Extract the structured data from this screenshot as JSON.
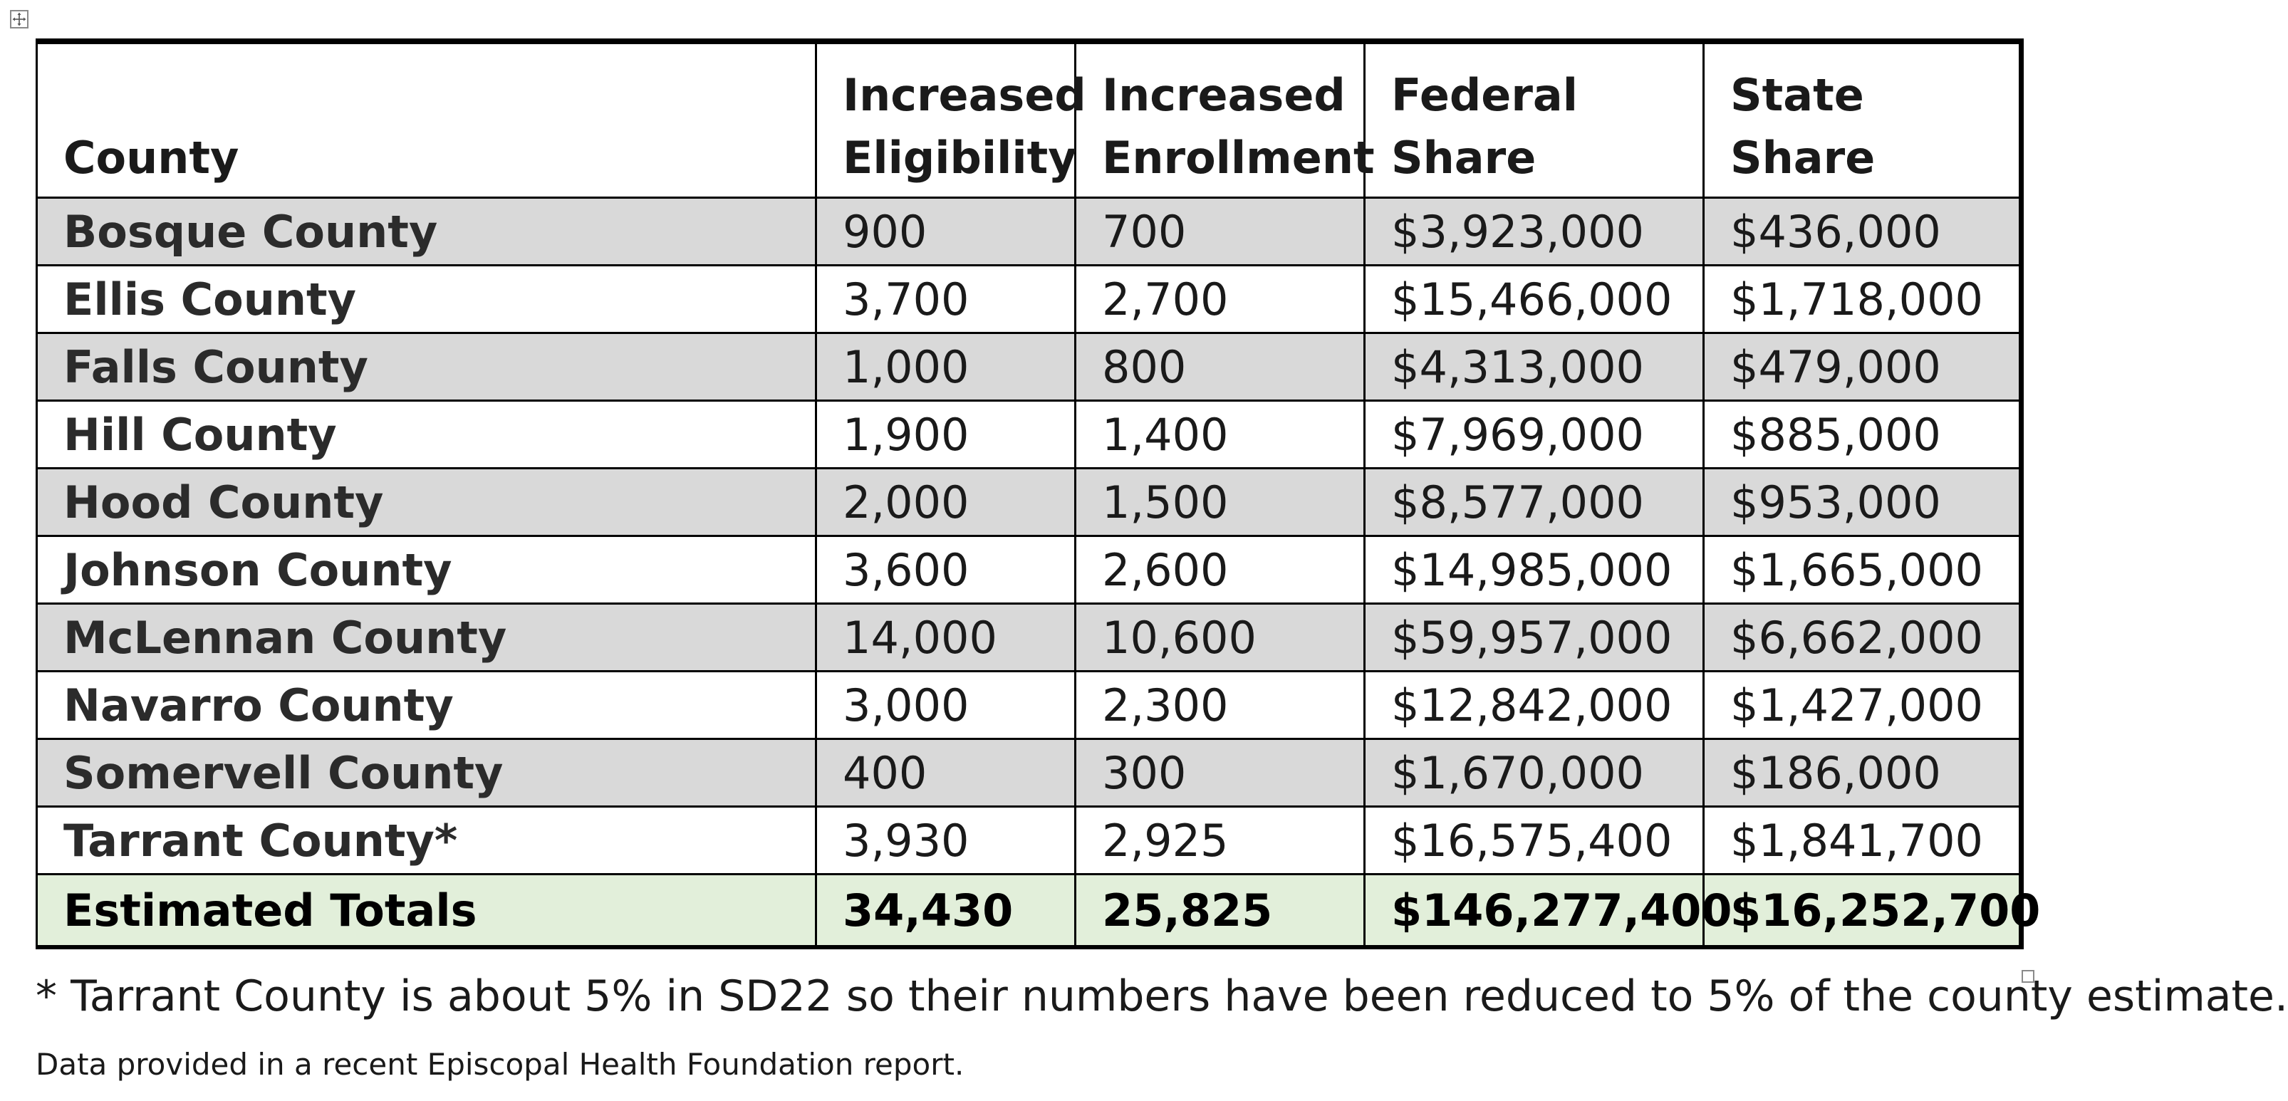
{
  "table": {
    "headers": [
      [
        "County"
      ],
      [
        "Increased",
        "Eligibility"
      ],
      [
        "Increased",
        "Enrollment"
      ],
      [
        "Federal",
        "Share"
      ],
      [
        "State Share"
      ]
    ],
    "rows": [
      {
        "county": "Bosque County",
        "eligibility": "900",
        "enrollment": "700",
        "federal": "$3,923,000",
        "state": "$436,000"
      },
      {
        "county": "Ellis County",
        "eligibility": "3,700",
        "enrollment": "2,700",
        "federal": "$15,466,000",
        "state": "$1,718,000"
      },
      {
        "county": "Falls County",
        "eligibility": "1,000",
        "enrollment": "800",
        "federal": "$4,313,000",
        "state": "$479,000"
      },
      {
        "county": "Hill County",
        "eligibility": "1,900",
        "enrollment": "1,400",
        "federal": "$7,969,000",
        "state": "$885,000"
      },
      {
        "county": "Hood County",
        "eligibility": "2,000",
        "enrollment": "1,500",
        "federal": "$8,577,000",
        "state": "$953,000"
      },
      {
        "county": "Johnson County",
        "eligibility": "3,600",
        "enrollment": "2,600",
        "federal": "$14,985,000",
        "state": "$1,665,000"
      },
      {
        "county": "McLennan County",
        "eligibility": "14,000",
        "enrollment": "10,600",
        "federal": "$59,957,000",
        "state": "$6,662,000"
      },
      {
        "county": "Navarro County",
        "eligibility": "3,000",
        "enrollment": "2,300",
        "federal": "$12,842,000",
        "state": "$1,427,000"
      },
      {
        "county": "Somervell County",
        "eligibility": "400",
        "enrollment": "300",
        "federal": "$1,670,000",
        "state": "$186,000"
      },
      {
        "county": "Tarrant County*",
        "eligibility": "3,930",
        "enrollment": "2,925",
        "federal": "$16,575,400",
        "state": "$1,841,700"
      }
    ],
    "totals": {
      "label": "Estimated Totals",
      "eligibility": "34,430",
      "enrollment": "25,825",
      "federal": "$146,277,400",
      "state": "$16,252,700"
    }
  },
  "footnote": "* Tarrant County is about 5% in SD22 so their numbers have been reduced to 5% of the county estimate.",
  "source_note": "Data provided in a recent Episcopal Health Foundation report.",
  "colors": {
    "row_shade": "#d9d9d9",
    "totals_fill": "#e2efda",
    "border": "#000000"
  },
  "icons": {
    "table_move_handle": "move-arrows-icon",
    "table_resize_handle": "resize-handle-icon"
  }
}
